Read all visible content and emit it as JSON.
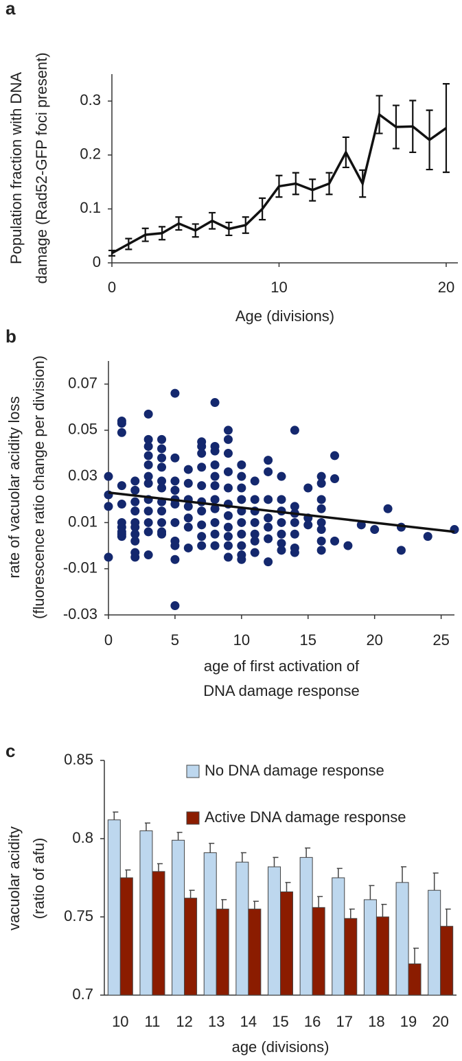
{
  "chart_data": [
    {
      "type": "line",
      "panel_label": "a",
      "x_label": [
        "Age (divisions)"
      ],
      "y_label": [
        "Population fraction with DNA",
        "damage (Rad52-GFP foci present)"
      ],
      "x": [
        0,
        1,
        2,
        3,
        4,
        5,
        6,
        7,
        8,
        9,
        10,
        11,
        12,
        13,
        14,
        15,
        16,
        17,
        18,
        19,
        20
      ],
      "series": [
        {
          "color": "#111111",
          "values": [
            0.018,
            0.035,
            0.052,
            0.055,
            0.073,
            0.06,
            0.078,
            0.063,
            0.07,
            0.1,
            0.142,
            0.147,
            0.135,
            0.147,
            0.205,
            0.147,
            0.275,
            0.252,
            0.253,
            0.228,
            0.25
          ],
          "errors": [
            0.005,
            0.01,
            0.012,
            0.012,
            0.012,
            0.012,
            0.015,
            0.012,
            0.015,
            0.02,
            0.02,
            0.02,
            0.02,
            0.02,
            0.028,
            0.025,
            0.035,
            0.04,
            0.048,
            0.055,
            0.082
          ]
        }
      ],
      "xlim": [
        0,
        20.7
      ],
      "xticks": [
        0,
        10,
        20
      ],
      "ylim": [
        0,
        0.35
      ],
      "yticks": [
        0,
        0.1,
        0.2,
        0.3
      ]
    },
    {
      "type": "scatter",
      "panel_label": "b",
      "x_label": [
        "age of first activation of",
        "DNA damage response"
      ],
      "y_label": [
        "rate of vacuolar acidity loss",
        "(fluorescence ratio change per division)"
      ],
      "color": "#14286e",
      "x": [
        0,
        0,
        0,
        0,
        1,
        1,
        1,
        1,
        1,
        1,
        1,
        1,
        1,
        1,
        2,
        2,
        2,
        2,
        2,
        2,
        2,
        2,
        2,
        2,
        3,
        3,
        3,
        3,
        3,
        3,
        3,
        3,
        3,
        3,
        3,
        3,
        4,
        4,
        4,
        4,
        4,
        4,
        4,
        4,
        4,
        4,
        4,
        5,
        5,
        5,
        5,
        5,
        5,
        5,
        5,
        5,
        5,
        5,
        6,
        6,
        6,
        6,
        6,
        6,
        6,
        7,
        7,
        7,
        7,
        7,
        7,
        7,
        7,
        7,
        7,
        8,
        8,
        8,
        8,
        8,
        8,
        8,
        8,
        8,
        8,
        8,
        9,
        9,
        9,
        9,
        9,
        9,
        9,
        9,
        9,
        9,
        9,
        10,
        10,
        10,
        10,
        10,
        10,
        10,
        10,
        10,
        10,
        11,
        11,
        11,
        11,
        11,
        11,
        11,
        12,
        12,
        12,
        12,
        12,
        12,
        12,
        13,
        13,
        13,
        13,
        13,
        13,
        13,
        14,
        14,
        14,
        14,
        14,
        14,
        14,
        15,
        15,
        15,
        16,
        16,
        16,
        16,
        16,
        16,
        16,
        16,
        17,
        17,
        17,
        18,
        19,
        20,
        21,
        22,
        22,
        24,
        26
      ],
      "y": [
        0.03,
        0.022,
        0.017,
        -0.005,
        0.054,
        0.053,
        0.049,
        0.026,
        0.018,
        0.01,
        0.008,
        0.006,
        0.005,
        0.004,
        0.028,
        0.024,
        0.019,
        0.015,
        0.01,
        0.008,
        0.005,
        0.002,
        -0.003,
        -0.005,
        0.057,
        0.046,
        0.043,
        0.039,
        0.035,
        0.03,
        0.027,
        0.02,
        0.015,
        0.01,
        0.006,
        -0.004,
        0.046,
        0.042,
        0.038,
        0.034,
        0.028,
        0.025,
        0.019,
        0.015,
        0.01,
        0.006,
        0.005,
        0.066,
        0.038,
        0.028,
        0.024,
        0.02,
        0.018,
        0.01,
        0.002,
        0,
        -0.006,
        -0.026,
        0.033,
        0.027,
        0.02,
        0.017,
        0.012,
        0.008,
        -0.001,
        0.045,
        0.043,
        0.04,
        0.034,
        0.026,
        0.019,
        0.015,
        0.009,
        0.004,
        0,
        0.062,
        0.043,
        0.041,
        0.035,
        0.03,
        0.026,
        0.02,
        0.016,
        0.01,
        0.005,
        0,
        0.05,
        0.046,
        0.04,
        0.032,
        0.025,
        0.018,
        0.013,
        0.008,
        0.004,
        0,
        -0.005,
        0.035,
        0.03,
        0.025,
        0.02,
        0.015,
        0.01,
        0.005,
        0,
        -0.004,
        -0.006,
        0.028,
        0.02,
        0.015,
        0.01,
        0.005,
        0.002,
        -0.003,
        0.037,
        0.032,
        0.02,
        0.012,
        0.008,
        0.003,
        -0.007,
        0.03,
        0.02,
        0.015,
        0.01,
        0.005,
        0.001,
        -0.002,
        0.05,
        0.017,
        0.014,
        0.01,
        0.005,
        -0.001,
        -0.003,
        0.025,
        0.012,
        0.009,
        0.03,
        0.027,
        0.02,
        0.016,
        0.01,
        0.007,
        0.002,
        -0.002,
        0.039,
        0.029,
        0.002,
        0,
        0.009,
        0.007,
        0.016,
        0.008,
        -0.002,
        0.004,
        0.007
      ],
      "trendline": {
        "x": [
          0,
          26
        ],
        "y": [
          0.023,
          0.006
        ],
        "color": "#111111"
      },
      "xlim": [
        0,
        26
      ],
      "xticks": [
        0,
        5,
        10,
        15,
        20,
        25
      ],
      "ylim": [
        -0.03,
        0.08
      ],
      "yticks": [
        -0.03,
        -0.01,
        0.01,
        0.03,
        0.05,
        0.07
      ]
    },
    {
      "type": "bar",
      "panel_label": "c",
      "x_label": [
        "age (divisions)"
      ],
      "y_label": [
        "vacuolar acidity",
        "(ratio of afu)"
      ],
      "legend": "upper right",
      "categories": [
        "10",
        "11",
        "12",
        "13",
        "14",
        "15",
        "16",
        "17",
        "18",
        "19",
        "20"
      ],
      "series": [
        {
          "name": "No DNA damage response",
          "color": "#bdd7ee",
          "values": [
            0.812,
            0.805,
            0.799,
            0.791,
            0.785,
            0.782,
            0.788,
            0.775,
            0.761,
            0.772,
            0.767
          ],
          "errors": [
            0.005,
            0.005,
            0.005,
            0.006,
            0.006,
            0.006,
            0.006,
            0.006,
            0.009,
            0.01,
            0.011
          ]
        },
        {
          "name": "Active DNA damage response",
          "color": "#8b1c00",
          "values": [
            0.775,
            0.779,
            0.762,
            0.755,
            0.755,
            0.766,
            0.756,
            0.749,
            0.75,
            0.72,
            0.744
          ],
          "errors": [
            0.005,
            0.005,
            0.005,
            0.006,
            0.005,
            0.006,
            0.007,
            0.006,
            0.008,
            0.01,
            0.011
          ]
        }
      ],
      "ylim": [
        0.7,
        0.85
      ],
      "yticks": [
        0.7,
        0.75,
        0.8,
        0.85
      ]
    }
  ]
}
